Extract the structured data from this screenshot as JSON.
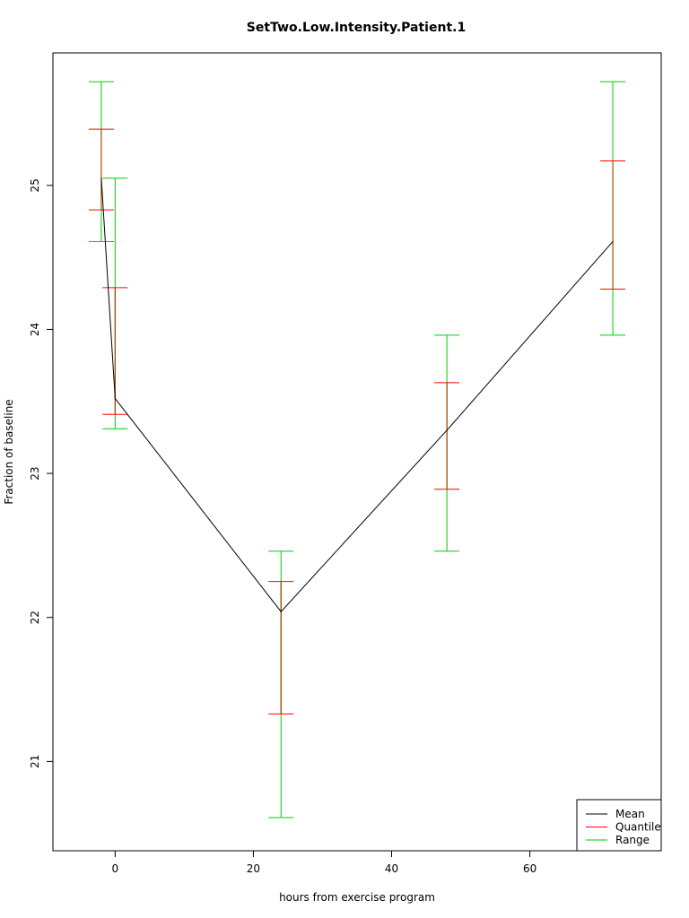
{
  "chart_data": {
    "type": "line",
    "title": "SetTwo.Low.Intensity.Patient.1",
    "xlabel": "hours from exercise program",
    "ylabel": "Fraction of baseline",
    "xlim": [
      -9,
      79
    ],
    "ylim": [
      20.38,
      25.92
    ],
    "x_ticks": [
      0,
      20,
      40,
      60
    ],
    "y_ticks": [
      21,
      22,
      23,
      24,
      25
    ],
    "grid": false,
    "legend_position": "bottom-right",
    "legend": [
      {
        "label": "Mean",
        "color": "#000000"
      },
      {
        "label": "Quantile",
        "color": "#ff0000"
      },
      {
        "label": "Range",
        "color": "#00cc00"
      }
    ],
    "colors": {
      "mean": "#000000",
      "quantile": "#ff0000",
      "range": "#00cc00",
      "overlap": "#a05000"
    },
    "points": [
      {
        "x": -2,
        "mean": 25.05,
        "q_low": 24.83,
        "q_high": 25.39,
        "r_low": 24.61,
        "r_high": 25.72
      },
      {
        "x": 0,
        "mean": 23.52,
        "q_low": 23.41,
        "q_high": 24.29,
        "r_low": 23.31,
        "r_high": 25.05
      },
      {
        "x": 24,
        "mean": 22.04,
        "q_low": 21.33,
        "q_high": 22.25,
        "r_low": 20.61,
        "r_high": 22.46
      },
      {
        "x": 48,
        "mean": 23.3,
        "q_low": 22.89,
        "q_high": 23.63,
        "r_low": 22.46,
        "r_high": 23.96
      },
      {
        "x": 72,
        "mean": 24.61,
        "q_low": 24.28,
        "q_high": 25.17,
        "r_low": 23.96,
        "r_high": 25.72
      }
    ]
  }
}
